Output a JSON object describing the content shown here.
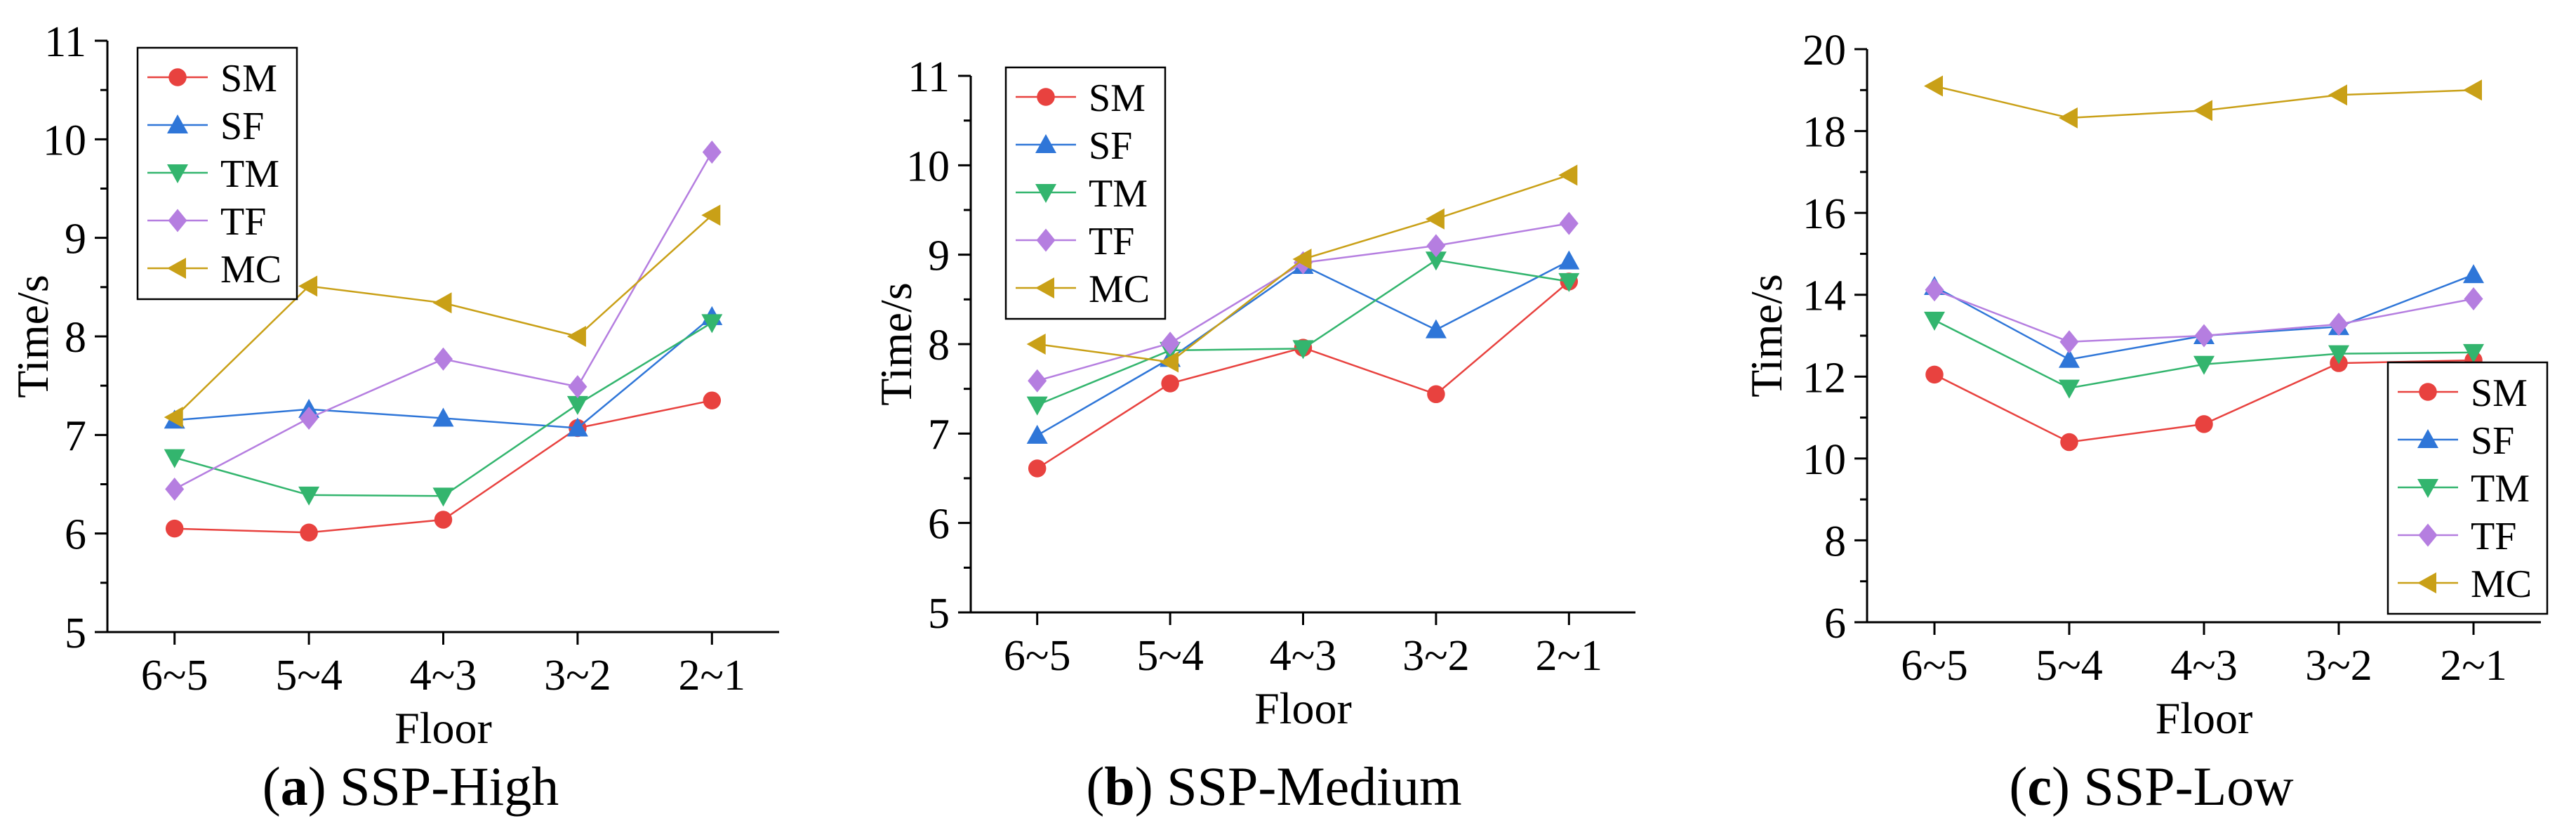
{
  "chart_data": [
    {
      "type": "line",
      "caption_letter": "a",
      "caption_text": "SSP-High",
      "xlabel": "Floor",
      "ylabel": "Time/s",
      "categories": [
        "6~5",
        "5~4",
        "4~3",
        "3~2",
        "2~1"
      ],
      "ylim": [
        5,
        11
      ],
      "yticks": [
        5,
        6,
        7,
        8,
        9,
        10,
        11
      ],
      "legend_position": "top-left",
      "series": [
        {
          "name": "SM",
          "color": "#e8423f",
          "marker": "circle",
          "values": [
            6.05,
            6.01,
            6.14,
            7.07,
            7.35
          ]
        },
        {
          "name": "SF",
          "color": "#2f76d8",
          "marker": "triangle-up",
          "values": [
            7.15,
            7.26,
            7.17,
            7.07,
            8.2
          ]
        },
        {
          "name": "TM",
          "color": "#33b56e",
          "marker": "triangle-down",
          "values": [
            6.77,
            6.39,
            6.38,
            7.31,
            8.14
          ]
        },
        {
          "name": "TF",
          "color": "#b57ee0",
          "marker": "diamond",
          "values": [
            6.45,
            7.17,
            7.77,
            7.49,
            9.87
          ]
        },
        {
          "name": "MC",
          "color": "#c9a017",
          "marker": "triangle-left",
          "values": [
            7.18,
            8.51,
            8.34,
            8.0,
            9.23
          ]
        }
      ]
    },
    {
      "type": "line",
      "caption_letter": "b",
      "caption_text": "SSP-Medium",
      "xlabel": "Floor",
      "ylabel": "Time/s",
      "categories": [
        "6~5",
        "5~4",
        "4~3",
        "3~2",
        "2~1"
      ],
      "ylim": [
        5,
        11
      ],
      "yticks": [
        5,
        6,
        7,
        8,
        9,
        10,
        11
      ],
      "legend_position": "top-left",
      "series": [
        {
          "name": "SM",
          "color": "#e8423f",
          "marker": "circle",
          "values": [
            6.61,
            7.56,
            7.96,
            7.44,
            8.7
          ]
        },
        {
          "name": "SF",
          "color": "#2f76d8",
          "marker": "triangle-up",
          "values": [
            6.98,
            7.84,
            8.88,
            8.16,
            8.93
          ]
        },
        {
          "name": "TM",
          "color": "#33b56e",
          "marker": "triangle-down",
          "values": [
            7.32,
            7.93,
            7.95,
            8.94,
            8.7
          ]
        },
        {
          "name": "TF",
          "color": "#b57ee0",
          "marker": "diamond",
          "values": [
            7.59,
            8.01,
            8.91,
            9.1,
            9.35
          ]
        },
        {
          "name": "MC",
          "color": "#c9a017",
          "marker": "triangle-left",
          "values": [
            8.0,
            7.8,
            8.95,
            9.4,
            9.89
          ]
        }
      ]
    },
    {
      "type": "line",
      "caption_letter": "c",
      "caption_text": "SSP-Low",
      "xlabel": "Floor",
      "ylabel": "Time/s",
      "categories": [
        "6~5",
        "5~4",
        "4~3",
        "3~2",
        "2~1"
      ],
      "ylim": [
        6,
        20
      ],
      "yticks": [
        6,
        8,
        10,
        12,
        14,
        16,
        18,
        20
      ],
      "legend_position": "bottom-right",
      "series": [
        {
          "name": "SM",
          "color": "#e8423f",
          "marker": "circle",
          "values": [
            12.05,
            10.4,
            10.84,
            12.33,
            12.4
          ]
        },
        {
          "name": "SF",
          "color": "#2f76d8",
          "marker": "triangle-up",
          "values": [
            14.2,
            12.42,
            13.0,
            13.22,
            14.49
          ]
        },
        {
          "name": "TM",
          "color": "#33b56e",
          "marker": "triangle-down",
          "values": [
            13.38,
            11.72,
            12.3,
            12.56,
            12.59
          ]
        },
        {
          "name": "TF",
          "color": "#b57ee0",
          "marker": "diamond",
          "values": [
            14.12,
            12.85,
            13.0,
            13.28,
            13.9
          ]
        },
        {
          "name": "MC",
          "color": "#c9a017",
          "marker": "triangle-left",
          "values": [
            19.1,
            18.32,
            18.5,
            18.88,
            19.0
          ]
        }
      ]
    }
  ]
}
